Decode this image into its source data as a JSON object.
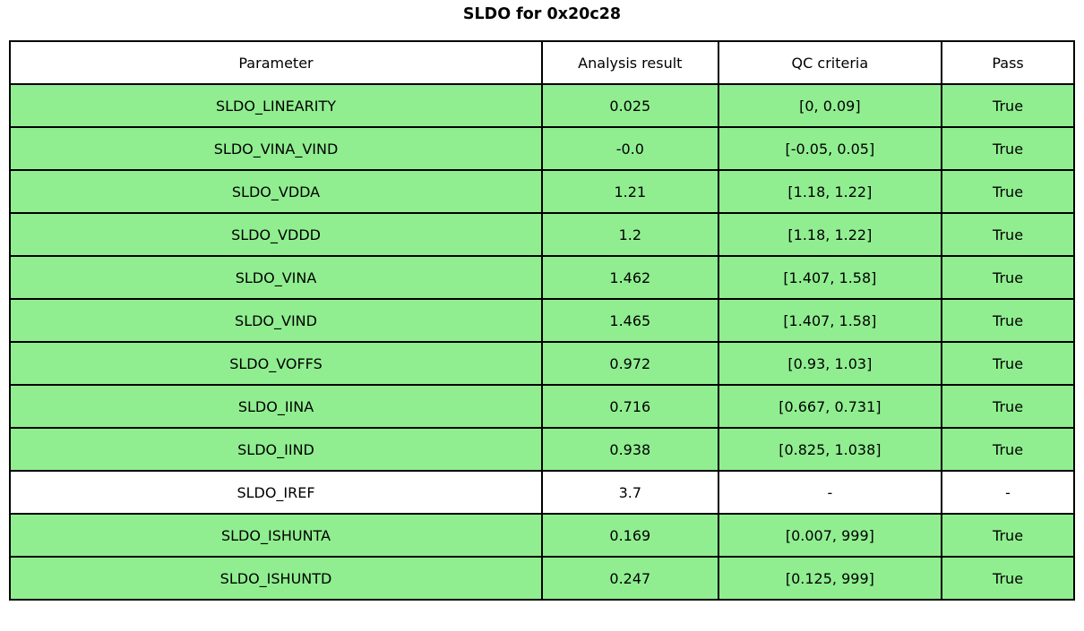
{
  "title": "SLDO for 0x20c28",
  "colors": {
    "pass_row_background": "#90EE90",
    "neutral_row_background": "#ffffff",
    "border": "#000000"
  },
  "chart_data": {
    "type": "table",
    "title": "SLDO for 0x20c28",
    "columns": [
      "Parameter",
      "Analysis result",
      "QC criteria",
      "Pass"
    ],
    "rows": [
      {
        "parameter": "SLDO_LINEARITY",
        "result": "0.025",
        "criteria": "[0, 0.09]",
        "pass": "True",
        "highlight": true
      },
      {
        "parameter": "SLDO_VINA_VIND",
        "result": "-0.0",
        "criteria": "[-0.05, 0.05]",
        "pass": "True",
        "highlight": true
      },
      {
        "parameter": "SLDO_VDDA",
        "result": "1.21",
        "criteria": "[1.18, 1.22]",
        "pass": "True",
        "highlight": true
      },
      {
        "parameter": "SLDO_VDDD",
        "result": "1.2",
        "criteria": "[1.18, 1.22]",
        "pass": "True",
        "highlight": true
      },
      {
        "parameter": "SLDO_VINA",
        "result": "1.462",
        "criteria": "[1.407, 1.58]",
        "pass": "True",
        "highlight": true
      },
      {
        "parameter": "SLDO_VIND",
        "result": "1.465",
        "criteria": "[1.407, 1.58]",
        "pass": "True",
        "highlight": true
      },
      {
        "parameter": "SLDO_VOFFS",
        "result": "0.972",
        "criteria": "[0.93, 1.03]",
        "pass": "True",
        "highlight": true
      },
      {
        "parameter": "SLDO_IINA",
        "result": "0.716",
        "criteria": "[0.667, 0.731]",
        "pass": "True",
        "highlight": true
      },
      {
        "parameter": "SLDO_IIND",
        "result": "0.938",
        "criteria": "[0.825, 1.038]",
        "pass": "True",
        "highlight": true
      },
      {
        "parameter": "SLDO_IREF",
        "result": "3.7",
        "criteria": "-",
        "pass": "-",
        "highlight": false
      },
      {
        "parameter": "SLDO_ISHUNTA",
        "result": "0.169",
        "criteria": "[0.007, 999]",
        "pass": "True",
        "highlight": true
      },
      {
        "parameter": "SLDO_ISHUNTD",
        "result": "0.247",
        "criteria": "[0.125, 999]",
        "pass": "True",
        "highlight": true
      }
    ]
  }
}
